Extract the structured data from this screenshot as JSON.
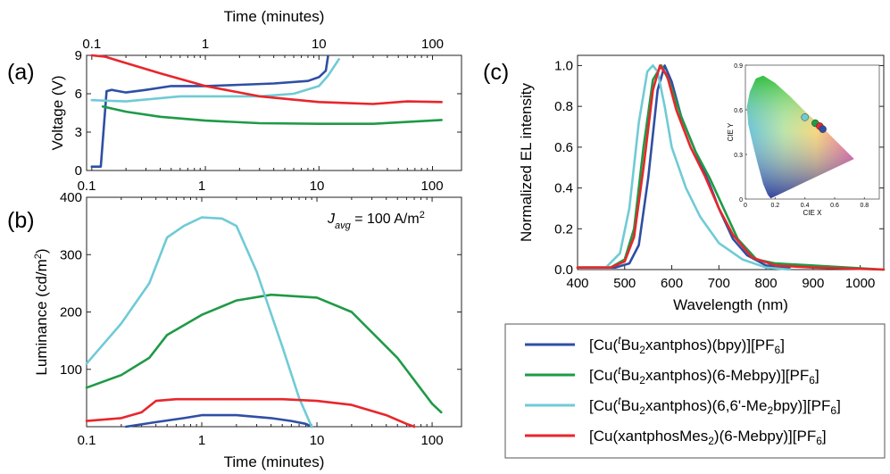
{
  "panel_labels": {
    "a": "(a)",
    "b": "(b)",
    "c": "(c)"
  },
  "inset_labels": {
    "xlabel": "CIE X",
    "ylabel": "CIE Y"
  },
  "colors": {
    "blue": "#2e4fa3",
    "green": "#1f9a46",
    "cyan": "#6fcbd6",
    "red": "#e8262b"
  },
  "legend": [
    {
      "color": "#2e4fa3",
      "parts": [
        [
          "n",
          "[Cu("
        ],
        [
          "sup-i",
          "t"
        ],
        [
          "n",
          "Bu"
        ],
        [
          "sub",
          "2"
        ],
        [
          "n",
          "xantphos)(bpy)][PF"
        ],
        [
          "sub",
          "6"
        ],
        [
          "n",
          "]"
        ]
      ]
    },
    {
      "color": "#1f9a46",
      "parts": [
        [
          "n",
          "[Cu("
        ],
        [
          "sup-i",
          "t"
        ],
        [
          "n",
          "Bu"
        ],
        [
          "sub",
          "2"
        ],
        [
          "n",
          "xantphos)(6-Mebpy)][PF"
        ],
        [
          "sub",
          "6"
        ],
        [
          "n",
          "]"
        ]
      ]
    },
    {
      "color": "#6fcbd6",
      "parts": [
        [
          "n",
          "[Cu("
        ],
        [
          "sup-i",
          "t"
        ],
        [
          "n",
          "Bu"
        ],
        [
          "sub",
          "2"
        ],
        [
          "n",
          "xantphos)(6,6'-Me"
        ],
        [
          "sub",
          "2"
        ],
        [
          "n",
          "bpy)][PF"
        ],
        [
          "sub",
          "6"
        ],
        [
          "n",
          "]"
        ]
      ]
    },
    {
      "color": "#e8262b",
      "parts": [
        [
          "n",
          "[Cu(xantphosMes"
        ],
        [
          "sub",
          "2"
        ],
        [
          "n",
          ")(6-Mebpy)][PF"
        ],
        [
          "sub",
          "6"
        ],
        [
          "n",
          "]"
        ]
      ]
    }
  ],
  "chart_data": [
    {
      "id": "a",
      "type": "line",
      "xscale": "log",
      "xlabel": "Time (minutes)",
      "ylabel": "Voltage (V)",
      "xlim": [
        0.09,
        180
      ],
      "ylim": [
        0,
        9
      ],
      "xticks": [
        0.1,
        1,
        10,
        100
      ],
      "xtick_labels": [
        "0.1",
        "1",
        "10",
        "100"
      ],
      "yticks": [
        0,
        3,
        6,
        9
      ],
      "ytick_labels": [
        "0",
        "3",
        "6",
        "9"
      ],
      "series": [
        {
          "color": "#2e4fa3",
          "x": [
            0.1,
            0.12,
            0.135,
            0.15,
            0.2,
            0.3,
            0.5,
            0.8,
            1,
            2,
            4,
            8,
            10,
            11.5,
            12
          ],
          "y": [
            0.3,
            0.3,
            6.2,
            6.3,
            6.1,
            6.3,
            6.6,
            6.6,
            6.6,
            6.7,
            6.8,
            7.0,
            7.3,
            7.8,
            8.9
          ]
        },
        {
          "color": "#1f9a46",
          "x": [
            0.125,
            0.2,
            0.4,
            1,
            3,
            10,
            30,
            120
          ],
          "y": [
            5.0,
            4.6,
            4.2,
            3.9,
            3.7,
            3.65,
            3.65,
            3.95
          ]
        },
        {
          "color": "#6fcbd6",
          "x": [
            0.1,
            0.2,
            0.35,
            0.6,
            1,
            3,
            6,
            10,
            12,
            15
          ],
          "y": [
            5.5,
            5.4,
            5.6,
            5.8,
            5.8,
            5.8,
            6.0,
            6.6,
            7.4,
            8.7
          ]
        },
        {
          "color": "#e8262b",
          "x": [
            0.1,
            0.13,
            0.2,
            0.4,
            1,
            3,
            10,
            30,
            60,
            120
          ],
          "y": [
            9.0,
            8.9,
            8.4,
            7.6,
            6.6,
            5.8,
            5.35,
            5.2,
            5.4,
            5.35
          ]
        }
      ]
    },
    {
      "id": "b",
      "type": "line",
      "xscale": "log",
      "xlabel": "Time (minutes)",
      "ylabel": "Luminance (cd/m²)",
      "xlim": [
        0.1,
        180
      ],
      "ylim": [
        0,
        400
      ],
      "xticks": [
        0.1,
        1,
        10,
        100
      ],
      "xtick_labels": [
        "0.1",
        "1",
        "10",
        "100"
      ],
      "yticks": [
        100,
        200,
        300,
        400
      ],
      "ytick_labels": [
        "100",
        "200",
        "300",
        "400"
      ],
      "annotation": {
        "base": "J",
        "sub": "avg",
        "rest": " = 100 A/m",
        "sup": "2"
      },
      "series": [
        {
          "color": "#2e4fa3",
          "x": [
            0.22,
            0.4,
            0.7,
            1,
            2,
            4,
            6,
            8,
            9
          ],
          "y": [
            0,
            8,
            15,
            20,
            20,
            15,
            10,
            5,
            0
          ]
        },
        {
          "color": "#1f9a46",
          "x": [
            0.1,
            0.2,
            0.35,
            0.5,
            1,
            2,
            4,
            10,
            20,
            50,
            100,
            120
          ],
          "y": [
            68,
            90,
            120,
            160,
            195,
            220,
            230,
            225,
            200,
            120,
            40,
            25
          ]
        },
        {
          "color": "#6fcbd6",
          "x": [
            0.1,
            0.2,
            0.35,
            0.5,
            0.7,
            1,
            1.5,
            2,
            3,
            5,
            7,
            9
          ],
          "y": [
            110,
            180,
            250,
            330,
            350,
            365,
            363,
            350,
            270,
            140,
            50,
            0
          ]
        },
        {
          "color": "#e8262b",
          "x": [
            0.1,
            0.2,
            0.3,
            0.4,
            0.6,
            1,
            5,
            10,
            20,
            40,
            60,
            70
          ],
          "y": [
            10,
            15,
            25,
            45,
            48,
            48,
            48,
            45,
            38,
            20,
            5,
            0
          ]
        }
      ]
    },
    {
      "id": "c",
      "type": "line",
      "xlabel": "Wavelength (nm)",
      "ylabel": "Normalized EL intensity",
      "xlim": [
        400,
        1050
      ],
      "ylim": [
        0,
        1.05
      ],
      "xticks": [
        400,
        500,
        600,
        700,
        800,
        900,
        1000
      ],
      "xtick_labels": [
        "400",
        "500",
        "600",
        "700",
        "800",
        "900",
        "1000"
      ],
      "yticks": [
        0,
        0.2,
        0.4,
        0.6,
        0.8,
        1.0
      ],
      "ytick_labels": [
        "0.0",
        "0.2",
        "0.4",
        "0.6",
        "0.8",
        "1.0"
      ],
      "series": [
        {
          "color": "#2e4fa3",
          "x": [
            400,
            480,
            510,
            530,
            550,
            570,
            585,
            600,
            620,
            650,
            680,
            700,
            730,
            760,
            800,
            850
          ],
          "y": [
            0.01,
            0.01,
            0.03,
            0.12,
            0.45,
            0.88,
            1.0,
            0.92,
            0.75,
            0.58,
            0.42,
            0.3,
            0.15,
            0.07,
            0.02,
            0.01
          ]
        },
        {
          "color": "#1f9a46",
          "x": [
            400,
            470,
            500,
            520,
            540,
            560,
            578,
            595,
            620,
            650,
            680,
            710,
            740,
            780,
            820,
            900,
            1050
          ],
          "y": [
            0.01,
            0.01,
            0.05,
            0.2,
            0.6,
            0.93,
            1.0,
            0.92,
            0.75,
            0.58,
            0.45,
            0.3,
            0.15,
            0.05,
            0.03,
            0.02,
            0.0
          ]
        },
        {
          "color": "#6fcbd6",
          "x": [
            400,
            460,
            490,
            510,
            530,
            548,
            560,
            570,
            585,
            600,
            630,
            660,
            700,
            750,
            800,
            850
          ],
          "y": [
            0.01,
            0.01,
            0.08,
            0.3,
            0.72,
            0.97,
            1.0,
            0.97,
            0.8,
            0.6,
            0.4,
            0.26,
            0.13,
            0.05,
            0.01,
            0.0
          ]
        },
        {
          "color": "#e8262b",
          "x": [
            400,
            470,
            500,
            520,
            540,
            560,
            575,
            590,
            610,
            640,
            670,
            700,
            730,
            770,
            820,
            900,
            1050
          ],
          "y": [
            0.01,
            0.01,
            0.04,
            0.16,
            0.5,
            0.88,
            1.0,
            0.95,
            0.78,
            0.6,
            0.46,
            0.3,
            0.17,
            0.06,
            0.02,
            0.01,
            0.0
          ]
        }
      ]
    },
    {
      "id": "cie",
      "type": "scatter",
      "xlabel": "CIE X",
      "ylabel": "CIE Y",
      "xlim": [
        0,
        0.9
      ],
      "ylim": [
        0,
        0.9
      ],
      "xticks": [
        0,
        0.2,
        0.4,
        0.6,
        0.8
      ],
      "xtick_labels": [
        "0",
        "0.2",
        "0.4",
        "0.6",
        "0.8"
      ],
      "yticks": [
        0,
        0.3,
        0.6,
        0.9
      ],
      "ytick_labels": [
        "0",
        "0.3",
        "0.6",
        "0.9"
      ],
      "points": [
        {
          "color": "#6fcbd6",
          "x": 0.4,
          "y": 0.55
        },
        {
          "color": "#1f9a46",
          "x": 0.47,
          "y": 0.51
        },
        {
          "color": "#e8262b",
          "x": 0.5,
          "y": 0.49
        },
        {
          "color": "#2e4fa3",
          "x": 0.52,
          "y": 0.47
        }
      ]
    }
  ]
}
